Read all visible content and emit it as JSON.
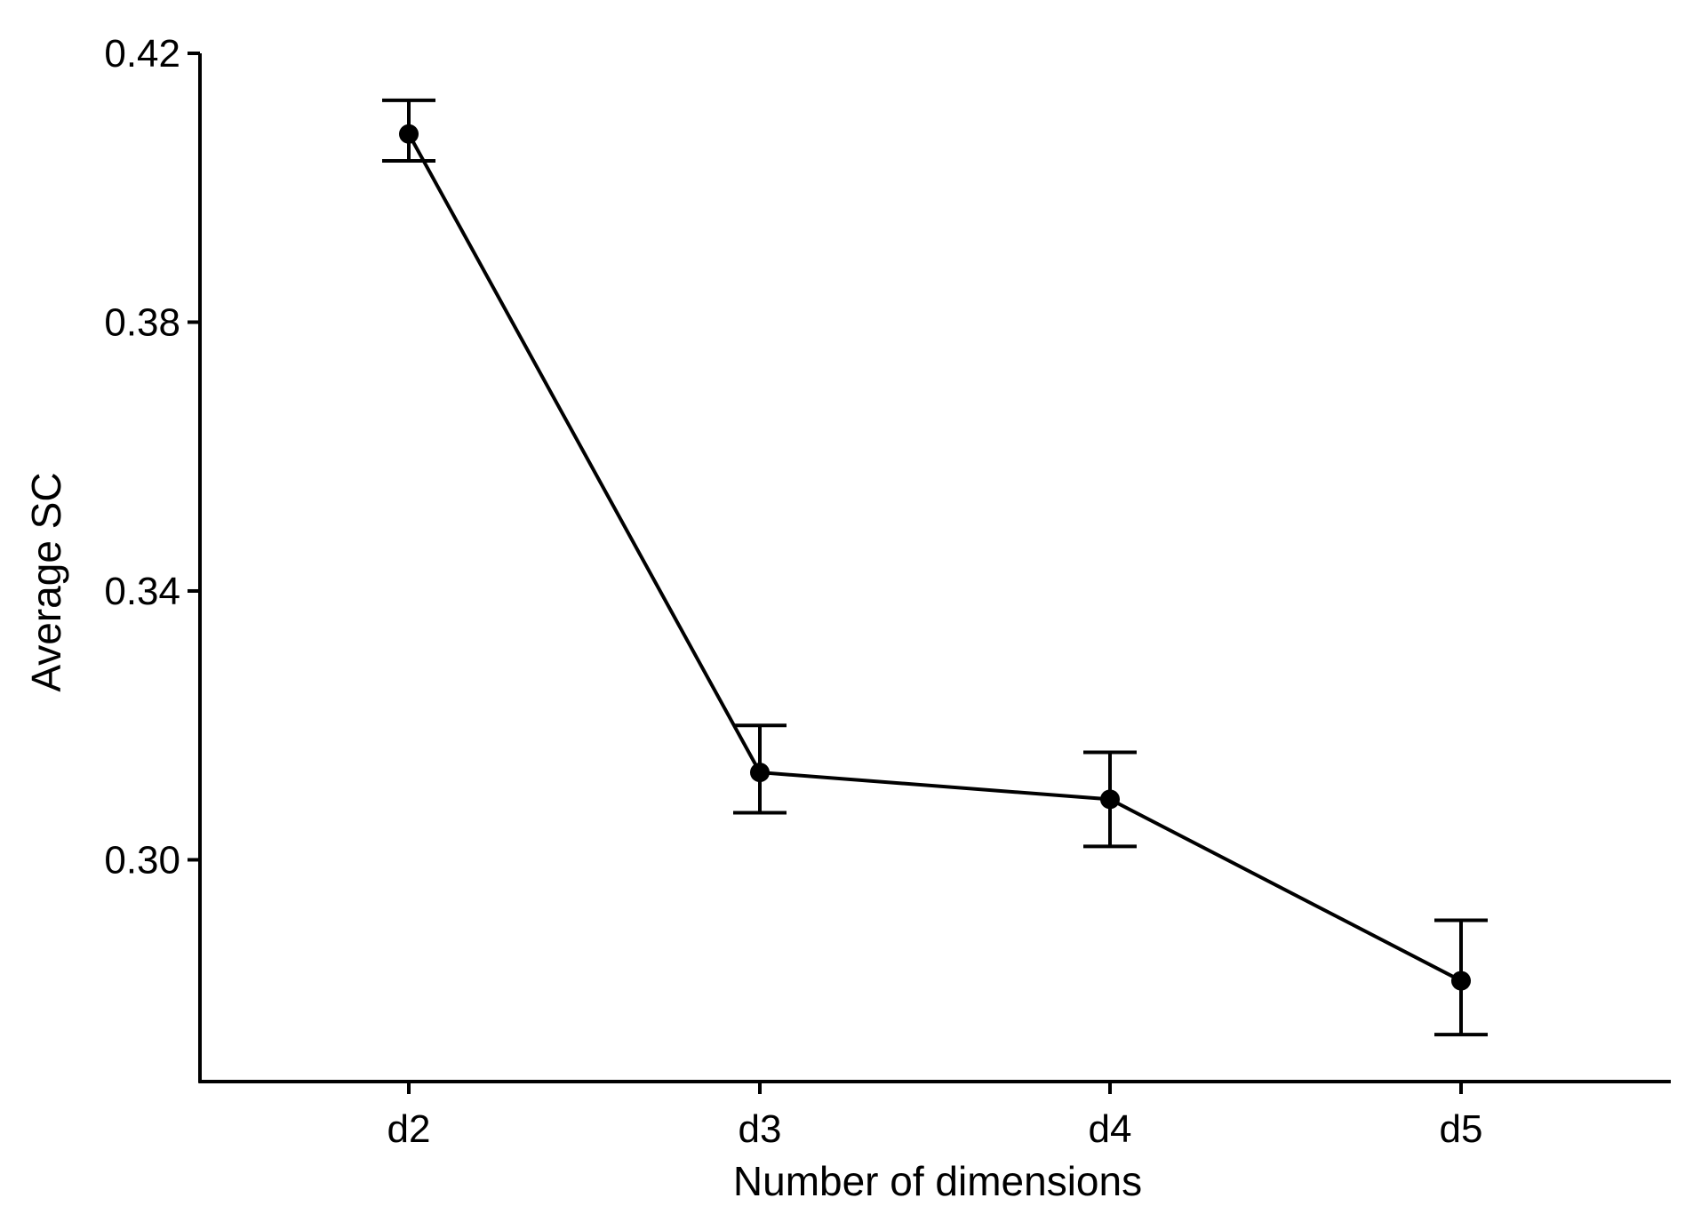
{
  "chart_data": {
    "type": "line",
    "title": "",
    "xlabel": "Number of dimensions",
    "ylabel": "Average SC",
    "categories": [
      "d2",
      "d3",
      "d4",
      "d5"
    ],
    "series": [
      {
        "values": [
          0.408,
          0.313,
          0.309,
          0.282
        ],
        "error_low": [
          0.404,
          0.307,
          0.302,
          0.274
        ],
        "error_high": [
          0.413,
          0.32,
          0.316,
          0.291
        ]
      }
    ],
    "ylim": [
      0.267,
      0.42
    ],
    "yticks": [
      0.3,
      0.34,
      0.38,
      0.42
    ],
    "ytick_labels": [
      "0.30",
      "0.34",
      "0.38",
      "0.42"
    ],
    "grid": false,
    "legend": "none",
    "line_color": "#000000"
  }
}
